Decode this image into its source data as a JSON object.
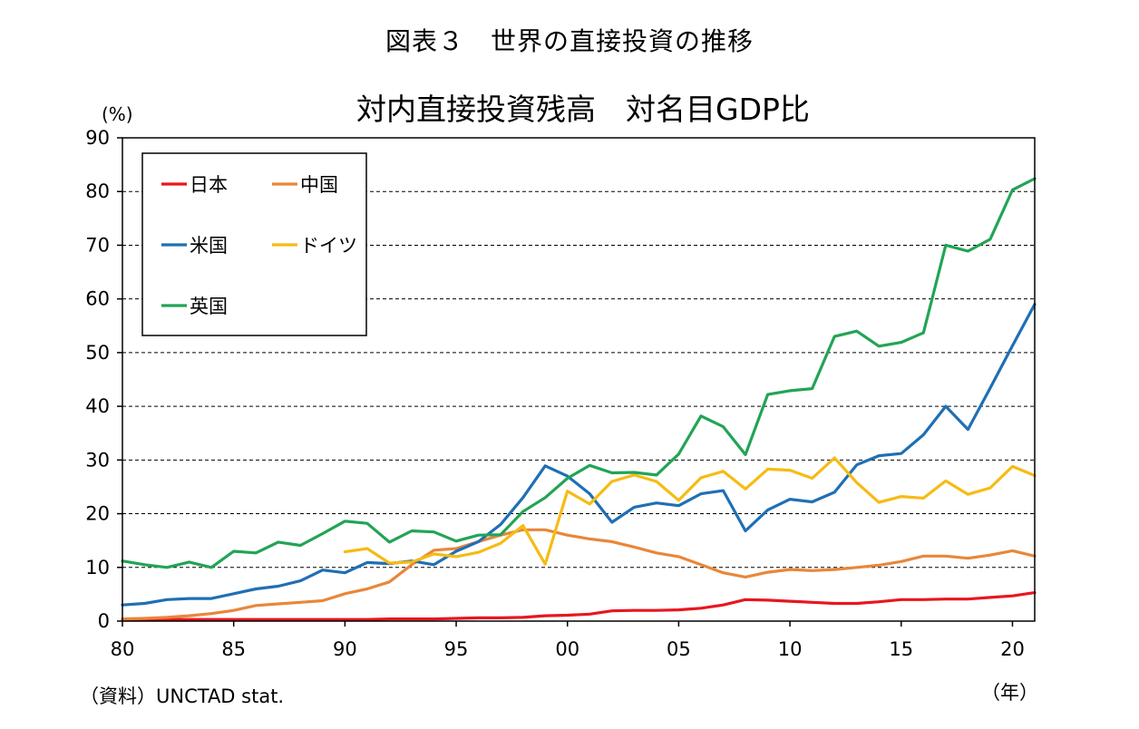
{
  "figure_title": "図表３　世界の直接投資の推移",
  "source_note": "（資料）UNCTAD stat.",
  "colors": {
    "日本": "#e8161f",
    "中国": "#e8873a",
    "米国": "#1f6fb4",
    "ドイツ": "#f6bb14",
    "英国": "#22a455"
  },
  "chart_data": {
    "type": "line",
    "title": "対内直接投資残高　対名目GDP比",
    "ylabel": "(%)",
    "xlabel": "（年）",
    "xlim": [
      1980,
      2021
    ],
    "ylim": [
      0,
      90
    ],
    "x_ticks": [
      1980,
      1985,
      1990,
      1995,
      2000,
      2005,
      2010,
      2015,
      2020
    ],
    "x_tick_labels": [
      "80",
      "85",
      "90",
      "95",
      "00",
      "05",
      "10",
      "15",
      "20"
    ],
    "y_ticks": [
      0,
      10,
      20,
      30,
      40,
      50,
      60,
      70,
      80,
      90
    ],
    "y_tick_labels": [
      "0",
      "10",
      "20",
      "30",
      "40",
      "50",
      "60",
      "70",
      "80",
      "90"
    ],
    "grid": "horizontal dashed",
    "legend_position": "top-left",
    "x": [
      1980,
      1981,
      1982,
      1983,
      1984,
      1985,
      1986,
      1987,
      1988,
      1989,
      1990,
      1991,
      1992,
      1993,
      1994,
      1995,
      1996,
      1997,
      1998,
      1999,
      2000,
      2001,
      2002,
      2003,
      2004,
      2005,
      2006,
      2007,
      2008,
      2009,
      2010,
      2011,
      2012,
      2013,
      2014,
      2015,
      2016,
      2017,
      2018,
      2019,
      2020,
      2021
    ],
    "series": [
      {
        "name": "日本",
        "values": [
          0.3,
          0.3,
          0.3,
          0.3,
          0.3,
          0.3,
          0.3,
          0.3,
          0.3,
          0.3,
          0.3,
          0.3,
          0.4,
          0.4,
          0.4,
          0.5,
          0.6,
          0.6,
          0.7,
          1.0,
          1.1,
          1.3,
          1.9,
          2.0,
          2.0,
          2.1,
          2.4,
          3.0,
          4.0,
          3.9,
          3.7,
          3.5,
          3.3,
          3.3,
          3.6,
          4.0,
          4.0,
          4.1,
          4.1,
          4.4,
          4.7,
          5.3
        ]
      },
      {
        "name": "中国",
        "values": [
          0.4,
          0.5,
          0.7,
          1.0,
          1.4,
          2.0,
          2.9,
          3.2,
          3.5,
          3.8,
          5.1,
          6.0,
          7.3,
          10.5,
          13.2,
          13.5,
          14.8,
          16.0,
          17.0,
          17.0,
          16.0,
          15.3,
          14.8,
          13.8,
          12.7,
          12.0,
          10.5,
          9.0,
          8.2,
          9.1,
          9.6,
          9.4,
          9.6,
          10.0,
          10.4,
          11.1,
          12.1,
          12.1,
          11.7,
          12.3,
          13.1,
          12.1
        ]
      },
      {
        "name": "米国",
        "values": [
          3.0,
          3.3,
          4.0,
          4.2,
          4.2,
          5.1,
          6.0,
          6.5,
          7.5,
          9.5,
          9.0,
          10.9,
          10.7,
          11.2,
          10.5,
          13.0,
          14.8,
          18.0,
          23.0,
          28.9,
          27.0,
          23.7,
          18.4,
          21.2,
          22.0,
          21.5,
          23.7,
          24.3,
          16.8,
          20.7,
          22.7,
          22.2,
          24.0,
          29.1,
          30.8,
          31.2,
          34.7,
          40.0,
          35.7,
          43.4,
          51.3,
          59.0
        ]
      },
      {
        "name": "ドイツ",
        "values": [
          null,
          null,
          null,
          null,
          null,
          null,
          null,
          null,
          null,
          null,
          12.9,
          13.5,
          10.8,
          11.0,
          12.5,
          12.0,
          12.8,
          14.5,
          17.8,
          10.6,
          24.2,
          21.8,
          26.0,
          27.2,
          26.0,
          22.5,
          26.7,
          27.9,
          24.6,
          28.3,
          28.1,
          26.6,
          30.4,
          25.8,
          22.1,
          23.2,
          22.9,
          26.1,
          23.6,
          24.8,
          28.8,
          27.1
        ]
      },
      {
        "name": "英国",
        "values": [
          11.2,
          10.5,
          10.0,
          11.0,
          10.0,
          13.0,
          12.7,
          14.7,
          14.1,
          16.3,
          18.6,
          18.2,
          14.7,
          16.8,
          16.6,
          14.9,
          16.0,
          16.1,
          20.4,
          23.0,
          26.6,
          29.0,
          27.6,
          27.7,
          27.2,
          31.1,
          38.2,
          36.2,
          31.0,
          42.2,
          42.9,
          43.3,
          53.0,
          54.0,
          51.2,
          51.9,
          53.7,
          70.0,
          68.9,
          71.1,
          80.3,
          82.4
        ]
      }
    ]
  }
}
